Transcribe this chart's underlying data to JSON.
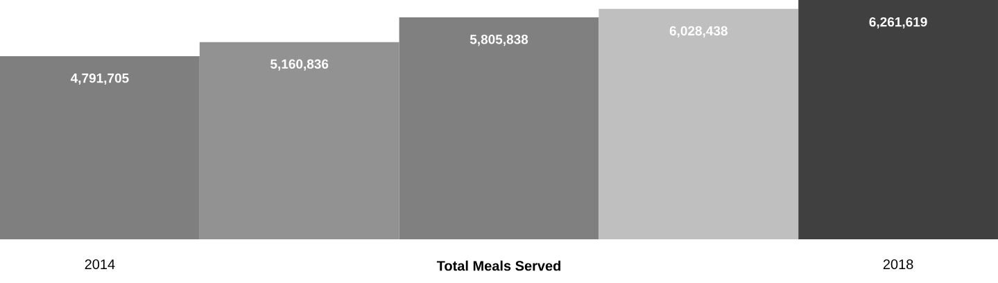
{
  "chart_data": {
    "type": "bar",
    "xlabel": "Total Meals Served",
    "categories": [
      "2014",
      null,
      null,
      null,
      "2018"
    ],
    "values": [
      4791705,
      5160836,
      5805838,
      6028438,
      6261619
    ],
    "colors": [
      "#7f7f7f",
      "#929292",
      "#808080",
      "#bfbfbf",
      "#404040"
    ],
    "value_labels": [
      "4,791,705",
      "5,160,836",
      "5,805,838",
      "6,028,438",
      "6,261,619"
    ]
  }
}
